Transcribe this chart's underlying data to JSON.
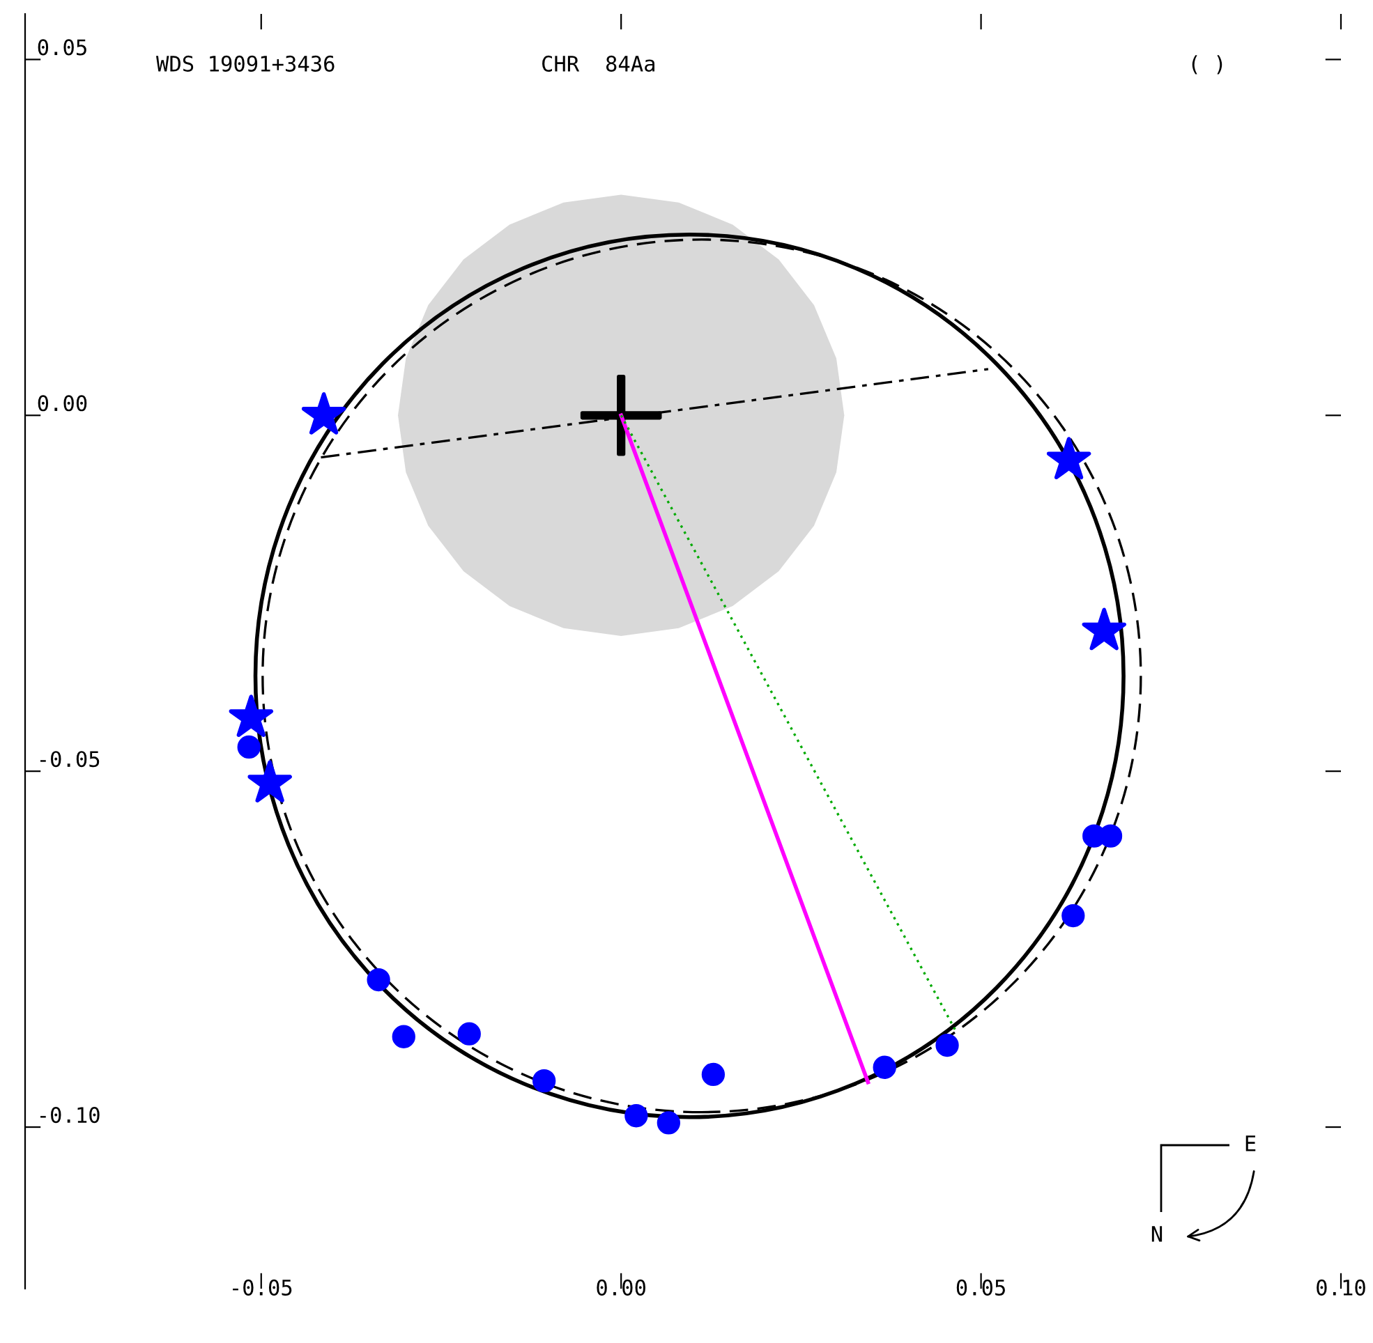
{
  "chart_data": {
    "type": "line",
    "annotations": [
      "WDS 19091+3436",
      "CHR  84Aa",
      "( )",
      "E",
      "N"
    ],
    "xlim": [
      -0.0828,
      0.1
    ],
    "ylim": [
      -0.1227,
      0.0564
    ],
    "xticks": [
      {
        "value": -0.05,
        "label": "-0.05"
      },
      {
        "value": 0,
        "label": "0.00"
      },
      {
        "value": 0.05,
        "label": "0.05"
      },
      {
        "value": 0.1,
        "label": "0.10"
      }
    ],
    "yticks": [
      {
        "value": 0.05,
        "label": "0.05"
      },
      {
        "value": 0,
        "label": "0.00"
      },
      {
        "value": -0.05,
        "label": "-0.05"
      },
      {
        "value": -0.1,
        "label": "-0.10"
      }
    ],
    "grid": false,
    "series": [
      {
        "type": "area",
        "color": "#d9d9d9",
        "x": [
          0.031,
          0.0299,
          0.0268,
          0.0219,
          0.0155,
          0.008,
          0,
          -0.008,
          -0.0155,
          -0.0219,
          -0.0268,
          -0.0299,
          -0.031,
          -0.0299,
          -0.0268,
          -0.0219,
          -0.0155,
          -0.008,
          0,
          0.008,
          0.0155,
          0.0219,
          0.0268,
          0.0299
        ],
        "values": [
          0,
          0.008,
          0.0155,
          0.0219,
          0.0268,
          0.0299,
          0.031,
          0.0299,
          0.0268,
          0.0219,
          0.0155,
          0.008,
          0,
          -0.008,
          -0.0155,
          -0.0219,
          -0.0268,
          -0.0299,
          -0.031,
          -0.0299,
          -0.0268,
          -0.0219,
          -0.0155,
          -0.008
        ]
      },
      {
        "color": "#000000",
        "line_style": "dashdot",
        "x": [
          -0.0417,
          0.051
        ],
        "values": [
          -0.0059,
          0.0065
        ]
      },
      {
        "color": "#ff00ff",
        "line_style": "solid",
        "x": [
          0,
          0.0343
        ],
        "values": [
          0,
          -0.0937
        ]
      },
      {
        "color": "#00aa00",
        "line_style": "dotted",
        "x": [
          0,
          0.0465
        ],
        "values": [
          0,
          -0.0865
        ]
      },
      {
        "type": "scatter",
        "color": "#0000ff",
        "marker": "star",
        "x": [
          -0.0413,
          0.0622,
          0.0671,
          -0.0514,
          -0.0488
        ],
        "values": [
          0.0,
          -0.0063,
          -0.0303,
          -0.0425,
          -0.0517
        ]
      },
      {
        "type": "scatter",
        "color": "#0000ff",
        "marker": "circle",
        "x": [
          -0.0517,
          -0.0337,
          -0.0302,
          -0.0211,
          -0.0107,
          0.0021,
          0.0066,
          0.0128,
          0.0366,
          0.0453,
          0.0628,
          0.0657,
          0.068
        ],
        "values": [
          -0.0466,
          -0.0793,
          -0.0873,
          -0.0869,
          -0.0935,
          -0.0984,
          -0.0994,
          -0.0926,
          -0.0916,
          -0.0885,
          -0.0703,
          -0.0591,
          -0.0591
        ]
      },
      {
        "type": "scatter",
        "color": "#000000",
        "marker": "cross",
        "x": [
          0
        ],
        "values": [
          0
        ]
      }
    ]
  }
}
